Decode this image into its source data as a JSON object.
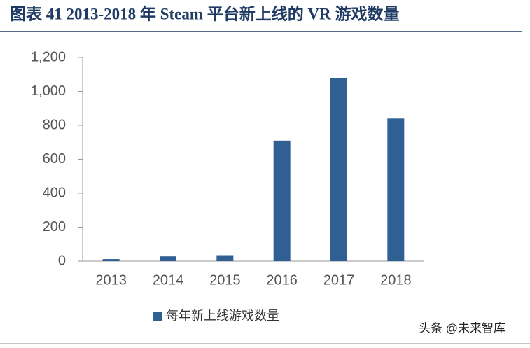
{
  "chart_data": {
    "type": "bar",
    "title": "图表 41 2013-2018 年 Steam 平台新上线的 VR 游戏数量",
    "categories": [
      "2013",
      "2014",
      "2015",
      "2016",
      "2017",
      "2018"
    ],
    "series": [
      {
        "name": "每年新上线游戏数量",
        "color": "#2f5f93",
        "values": [
          12,
          28,
          35,
          710,
          1080,
          840
        ]
      }
    ],
    "ylim": [
      0,
      1200
    ],
    "yticks": [
      0,
      200,
      400,
      600,
      800,
      {
        "value": 1000,
        "label": "1,000"
      },
      {
        "value": 1200,
        "label": "1,200"
      }
    ],
    "grid": false,
    "legend": "bottom"
  },
  "watermark": "头条 @未来智库"
}
